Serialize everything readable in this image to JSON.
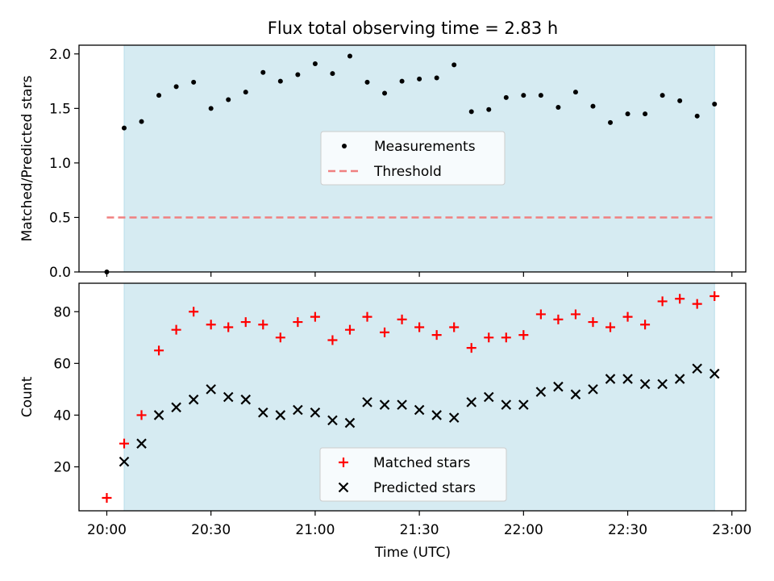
{
  "figure": {
    "title": "Flux total observing time = 2.83 h",
    "xlabel": "Time (UTC)"
  },
  "colors": {
    "shade": "#add8e6",
    "shade_opacity": 0.5,
    "threshold": "#f08080",
    "matched": "#ff0000",
    "predicted": "#000000",
    "measurement": "#000000"
  },
  "chart_data": [
    {
      "type": "scatter",
      "panel": "top",
      "title": "Flux total observing time = 2.83 h",
      "xlabel": "",
      "ylabel": "Matched/Predicted stars",
      "xlim": [
        "19:52",
        "23:04"
      ],
      "ylim": [
        0.0,
        2.08
      ],
      "yticks": [
        0.0,
        0.5,
        1.0,
        1.5,
        2.0
      ],
      "ytick_labels": [
        "0.0",
        "0.5",
        "1.0",
        "1.5",
        "2.0"
      ],
      "shaded_span": [
        "20:05",
        "22:55"
      ],
      "legend": {
        "placement": "center",
        "entries": [
          "Measurements",
          "Threshold"
        ]
      },
      "series": [
        {
          "name": "Measurements",
          "marker": "dot",
          "x": [
            "20:00",
            "20:05",
            "20:10",
            "20:15",
            "20:20",
            "20:25",
            "20:30",
            "20:35",
            "20:40",
            "20:45",
            "20:50",
            "20:55",
            "21:00",
            "21:05",
            "21:10",
            "21:15",
            "21:20",
            "21:25",
            "21:30",
            "21:35",
            "21:40",
            "21:45",
            "21:50",
            "21:55",
            "22:00",
            "22:05",
            "22:10",
            "22:15",
            "22:20",
            "22:25",
            "22:30",
            "22:35",
            "22:40",
            "22:45",
            "22:50",
            "22:55"
          ],
          "y": [
            0.0,
            1.32,
            1.38,
            1.62,
            1.7,
            1.74,
            1.5,
            1.58,
            1.65,
            1.83,
            1.75,
            1.81,
            1.91,
            1.82,
            1.98,
            1.74,
            1.64,
            1.75,
            1.77,
            1.78,
            1.9,
            1.47,
            1.49,
            1.6,
            1.62,
            1.62,
            1.51,
            1.65,
            1.52,
            1.37,
            1.45,
            1.45,
            1.62,
            1.57,
            1.43,
            1.54
          ]
        },
        {
          "name": "Threshold",
          "line": "dashed",
          "x": [
            "20:00",
            "22:55"
          ],
          "y": [
            0.5,
            0.5
          ]
        }
      ]
    },
    {
      "type": "scatter",
      "panel": "bottom",
      "xlabel": "Time (UTC)",
      "ylabel": "Count",
      "xlim": [
        "19:52",
        "23:04"
      ],
      "ylim": [
        3,
        91
      ],
      "yticks": [
        20,
        40,
        60,
        80
      ],
      "ytick_labels": [
        "20",
        "40",
        "60",
        "80"
      ],
      "xticks": [
        "20:00",
        "20:30",
        "21:00",
        "21:30",
        "22:00",
        "22:30",
        "23:00"
      ],
      "xtick_labels": [
        "20:00",
        "20:30",
        "21:00",
        "21:30",
        "22:00",
        "22:30",
        "23:00"
      ],
      "shaded_span": [
        "20:05",
        "22:55"
      ],
      "legend": {
        "placement": "lower center",
        "entries": [
          "Matched stars",
          "Predicted stars"
        ]
      },
      "series": [
        {
          "name": "Matched stars",
          "marker": "plus",
          "x": [
            "20:00",
            "20:05",
            "20:10",
            "20:15",
            "20:20",
            "20:25",
            "20:30",
            "20:35",
            "20:40",
            "20:45",
            "20:50",
            "20:55",
            "21:00",
            "21:05",
            "21:10",
            "21:15",
            "21:20",
            "21:25",
            "21:30",
            "21:35",
            "21:40",
            "21:45",
            "21:50",
            "21:55",
            "22:00",
            "22:05",
            "22:10",
            "22:15",
            "22:20",
            "22:25",
            "22:30",
            "22:35",
            "22:40",
            "22:45",
            "22:50",
            "22:55"
          ],
          "y": [
            8,
            29,
            40,
            65,
            73,
            80,
            75,
            74,
            76,
            75,
            70,
            76,
            78,
            69,
            73,
            78,
            72,
            77,
            74,
            71,
            74,
            66,
            70,
            70,
            71,
            79,
            77,
            79,
            76,
            74,
            78,
            75,
            84,
            85,
            83,
            86
          ]
        },
        {
          "name": "Predicted stars",
          "marker": "x",
          "x": [
            "20:05",
            "20:10",
            "20:15",
            "20:20",
            "20:25",
            "20:30",
            "20:35",
            "20:40",
            "20:45",
            "20:50",
            "20:55",
            "21:00",
            "21:05",
            "21:10",
            "21:15",
            "21:20",
            "21:25",
            "21:30",
            "21:35",
            "21:40",
            "21:45",
            "21:50",
            "21:55",
            "22:00",
            "22:05",
            "22:10",
            "22:15",
            "22:20",
            "22:25",
            "22:30",
            "22:35",
            "22:40",
            "22:45",
            "22:50",
            "22:55"
          ],
          "y": [
            22,
            29,
            40,
            43,
            46,
            50,
            47,
            46,
            41,
            40,
            42,
            41,
            38,
            37,
            45,
            44,
            44,
            42,
            40,
            39,
            45,
            47,
            44,
            44,
            49,
            51,
            48,
            50,
            54,
            54,
            52,
            52,
            54,
            58,
            56
          ]
        }
      ]
    }
  ]
}
